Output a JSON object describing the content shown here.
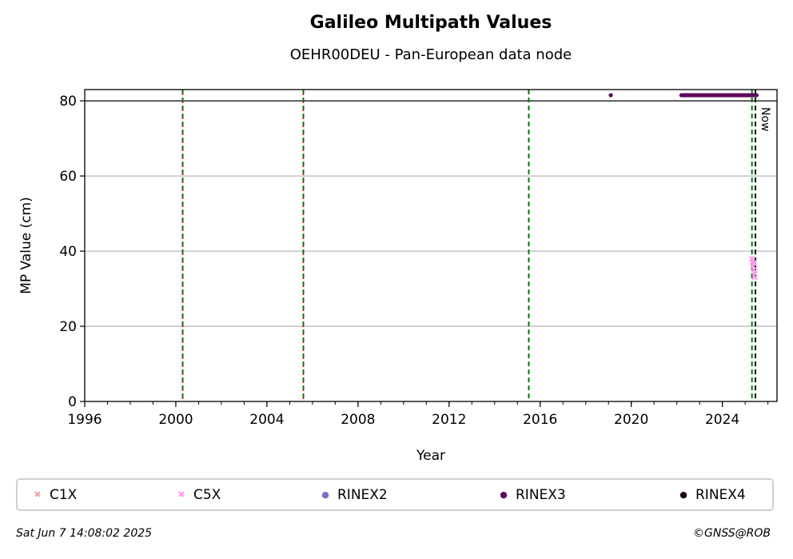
{
  "chart_data": {
    "type": "scatter",
    "title": "Galileo Multipath Values",
    "subtitle": "OEHR00DEU - Pan-European data node",
    "xlabel": "Year",
    "ylabel": "MP Value (cm)",
    "xlim": [
      1996,
      2026.4
    ],
    "ylim": [
      0,
      83
    ],
    "x_ticks": [
      "1996",
      "2000",
      "2004",
      "2008",
      "2012",
      "2016",
      "2020",
      "2024"
    ],
    "y_ticks": [
      "0",
      "20",
      "40",
      "60",
      "80"
    ],
    "grid": "horizontal",
    "threshold_line": 80,
    "now_label": "Now",
    "now_year": 2025.45,
    "legend_position": "bottom",
    "vertical_lines": [
      {
        "x": 2000.3,
        "style": "green-red-dashed"
      },
      {
        "x": 2005.6,
        "style": "green-red-dashed"
      },
      {
        "x": 2015.5,
        "style": "green-dashed"
      },
      {
        "x": 2025.3,
        "style": "green-dashed"
      },
      {
        "x": 2025.45,
        "style": "black-dashed"
      }
    ],
    "series": [
      {
        "name": "C1X",
        "color": "#f4a6a6",
        "marker": "x",
        "points": []
      },
      {
        "name": "C5X",
        "color": "#ff99ee",
        "marker": "x",
        "points": [
          [
            2025.3,
            38
          ],
          [
            2025.32,
            37
          ],
          [
            2025.35,
            36
          ],
          [
            2025.38,
            35
          ],
          [
            2025.4,
            37
          ],
          [
            2025.42,
            34
          ],
          [
            2025.44,
            33
          ]
        ]
      },
      {
        "name": "RINEX2",
        "color": "#7b6fbf",
        "marker": "dot",
        "points": []
      },
      {
        "name": "RINEX3",
        "color": "#5c0a5c",
        "marker": "dot",
        "points": [
          [
            2019.1,
            81.5
          ]
        ],
        "range": [
          2022.2,
          2025.5,
          81.5
        ]
      },
      {
        "name": "RINEX4",
        "color": "#1a0018",
        "marker": "dot",
        "points": []
      }
    ]
  },
  "footer": {
    "date": "Sat Jun  7 14:08:02 2025",
    "copyright": "©GNSS@ROB"
  }
}
